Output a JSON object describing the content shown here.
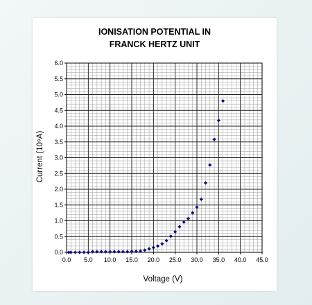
{
  "chart_data": {
    "type": "scatter",
    "title_lines": [
      "IONISATION POTENTIAL IN",
      "FRANCK HERTZ UNIT"
    ],
    "xlabel": "Voltage (V)",
    "ylabel": "Current (10⁹A)",
    "xlim": [
      0,
      45
    ],
    "ylim": [
      0,
      6
    ],
    "x_major_step": 5,
    "x_minor_step": 1,
    "y_major_step": 0.5,
    "y_minor_step": 0.1,
    "x_tick_labels": [
      "0.0",
      "5.0",
      "10.0",
      "15.0",
      "20.0",
      "25.0",
      "30.0",
      "35.0",
      "40.0",
      "45.0"
    ],
    "y_tick_labels": [
      "0.0",
      "0.5",
      "1.0",
      "1.5",
      "2.0",
      "2.5",
      "3.0",
      "3.5",
      "4.0",
      "4.5",
      "5.0",
      "5.5",
      "6.0"
    ],
    "grid": true,
    "marker_color": "#0b0f7a",
    "points": [
      {
        "x": 0.5,
        "y": 0.0
      },
      {
        "x": 1.0,
        "y": 0.0
      },
      {
        "x": 2.0,
        "y": 0.0
      },
      {
        "x": 3.0,
        "y": 0.0
      },
      {
        "x": 4.0,
        "y": 0.0
      },
      {
        "x": 5.0,
        "y": 0.0
      },
      {
        "x": 6.0,
        "y": 0.02
      },
      {
        "x": 7.0,
        "y": 0.02
      },
      {
        "x": 8.0,
        "y": 0.02
      },
      {
        "x": 9.0,
        "y": 0.02
      },
      {
        "x": 10.0,
        "y": 0.02
      },
      {
        "x": 11.0,
        "y": 0.02
      },
      {
        "x": 12.0,
        "y": 0.02
      },
      {
        "x": 13.0,
        "y": 0.02
      },
      {
        "x": 14.0,
        "y": 0.02
      },
      {
        "x": 15.0,
        "y": 0.03
      },
      {
        "x": 16.0,
        "y": 0.03
      },
      {
        "x": 17.0,
        "y": 0.04
      },
      {
        "x": 18.0,
        "y": 0.07
      },
      {
        "x": 19.0,
        "y": 0.11
      },
      {
        "x": 20.0,
        "y": 0.15
      },
      {
        "x": 21.0,
        "y": 0.2
      },
      {
        "x": 22.0,
        "y": 0.27
      },
      {
        "x": 23.0,
        "y": 0.37
      },
      {
        "x": 24.0,
        "y": 0.51
      },
      {
        "x": 25.0,
        "y": 0.65
      },
      {
        "x": 26.0,
        "y": 0.81
      },
      {
        "x": 27.0,
        "y": 0.96
      },
      {
        "x": 28.0,
        "y": 1.07
      },
      {
        "x": 29.0,
        "y": 1.25
      },
      {
        "x": 30.0,
        "y": 1.43
      },
      {
        "x": 31.0,
        "y": 1.68
      },
      {
        "x": 32.0,
        "y": 2.2
      },
      {
        "x": 33.0,
        "y": 2.77
      },
      {
        "x": 34.0,
        "y": 3.58
      },
      {
        "x": 35.0,
        "y": 4.18
      },
      {
        "x": 36.0,
        "y": 4.8
      }
    ]
  }
}
